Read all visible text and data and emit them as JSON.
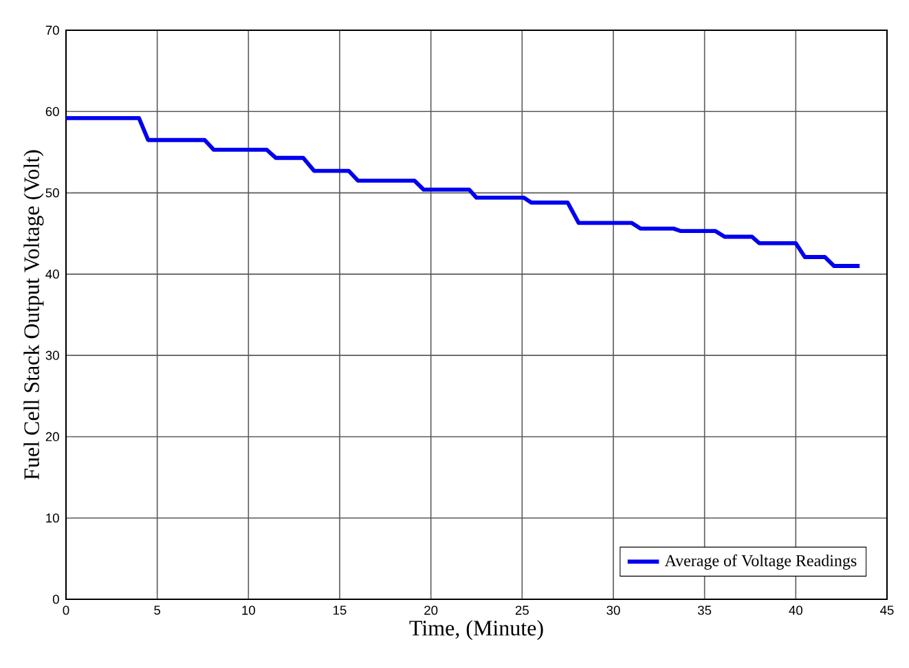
{
  "chart_data": {
    "type": "line",
    "xlabel": "Time, (Minute)",
    "ylabel": "Fuel Cell Stack Output Voltage (Volt)",
    "xlim": [
      0,
      45
    ],
    "xticks": [
      0,
      5,
      10,
      15,
      20,
      25,
      30,
      35,
      40,
      45
    ],
    "ylim": [
      0,
      70
    ],
    "yticks": [
      0,
      10,
      20,
      30,
      40,
      50,
      60,
      70
    ],
    "grid": true,
    "legend": "bottom right",
    "line_style": "solid",
    "marker": "none",
    "series": [
      {
        "name": "Average of Voltage Readings",
        "color": "#0000ee",
        "x": [
          0,
          4.0,
          4.5,
          7.6,
          8.1,
          11.0,
          11.5,
          13.0,
          13.6,
          15.5,
          16.0,
          19.1,
          19.6,
          22.1,
          22.5,
          25.1,
          25.5,
          27.5,
          28.1,
          31.0,
          31.5,
          33.3,
          33.7,
          35.6,
          36.1,
          37.6,
          38.0,
          40.0,
          40.5,
          41.6,
          42.1,
          43.5
        ],
        "values": [
          59.2,
          59.2,
          56.5,
          56.5,
          55.3,
          55.3,
          54.3,
          54.3,
          52.7,
          52.7,
          51.5,
          51.5,
          50.4,
          50.4,
          49.4,
          49.4,
          48.8,
          48.8,
          46.3,
          46.3,
          45.6,
          45.6,
          45.3,
          45.3,
          44.6,
          44.6,
          43.8,
          43.8,
          42.1,
          42.1,
          41.0,
          41.0
        ]
      }
    ]
  }
}
